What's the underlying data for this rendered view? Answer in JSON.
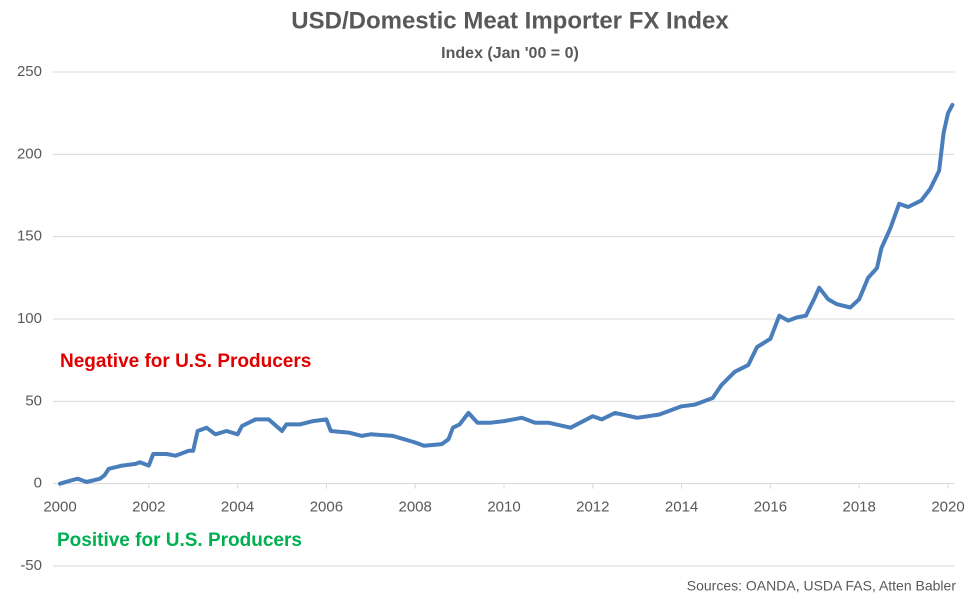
{
  "chart_data": {
    "type": "line",
    "title": "USD/Domestic Meat Importer FX Index",
    "subtitle": "Index (Jan '00 = 0)",
    "annotations": [
      "Negative for U.S. Producers",
      "Positive for U.S. Producers"
    ],
    "annotation_colors": [
      "#e00000",
      "#00b050"
    ],
    "source": "Sources: OANDA, USDA FAS, Atten Babler",
    "xlim": [
      2000,
      2020.15
    ],
    "xticks": [
      2000,
      2002,
      2004,
      2006,
      2008,
      2010,
      2012,
      2014,
      2016,
      2018,
      2020
    ],
    "ylim": [
      -50,
      250
    ],
    "yticks": [
      -50,
      0,
      50,
      100,
      150,
      200,
      250
    ],
    "grid": true,
    "x": [
      2000.0,
      2000.25,
      2000.4,
      2000.6,
      2000.9,
      2001.0,
      2001.1,
      2001.4,
      2001.7,
      2001.8,
      2002.0,
      2002.1,
      2002.4,
      2002.6,
      2002.9,
      2003.0,
      2003.1,
      2003.3,
      2003.5,
      2003.75,
      2004.0,
      2004.1,
      2004.4,
      2004.7,
      2005.0,
      2005.1,
      2005.4,
      2005.7,
      2006.0,
      2006.1,
      2006.5,
      2006.8,
      2007.0,
      2007.5,
      2008.0,
      2008.2,
      2008.6,
      2008.75,
      2008.85,
      2009.0,
      2009.2,
      2009.4,
      2009.7,
      2010.0,
      2010.4,
      2010.7,
      2011.0,
      2011.5,
      2012.0,
      2012.2,
      2012.5,
      2013.0,
      2013.5,
      2014.0,
      2014.3,
      2014.7,
      2014.9,
      2015.2,
      2015.5,
      2015.7,
      2016.0,
      2016.2,
      2016.4,
      2016.6,
      2016.8,
      2017.0,
      2017.1,
      2017.3,
      2017.5,
      2017.8,
      2018.0,
      2018.2,
      2018.4,
      2018.5,
      2018.7,
      2018.9,
      2019.1,
      2019.4,
      2019.6,
      2019.8,
      2019.9,
      2020.0,
      2020.1
    ],
    "series": [
      {
        "color": "#4a7ebb",
        "values": [
          0,
          2,
          3,
          1,
          3,
          5,
          9,
          11,
          12,
          13,
          11,
          18,
          18,
          17,
          20,
          20,
          32,
          34,
          30,
          32,
          30,
          35,
          39,
          39,
          32,
          36,
          36,
          38,
          39,
          32,
          31,
          29,
          30,
          29,
          25,
          23,
          24,
          27,
          34,
          36,
          43,
          37,
          37,
          38,
          40,
          37,
          37,
          34,
          41,
          39,
          43,
          40,
          42,
          47,
          48,
          52,
          60,
          68,
          72,
          83,
          88,
          102,
          99,
          101,
          102,
          113,
          119,
          112,
          109,
          107,
          112,
          125,
          131,
          143,
          155,
          170,
          168,
          172,
          179,
          190,
          213,
          225,
          230
        ]
      }
    ]
  }
}
